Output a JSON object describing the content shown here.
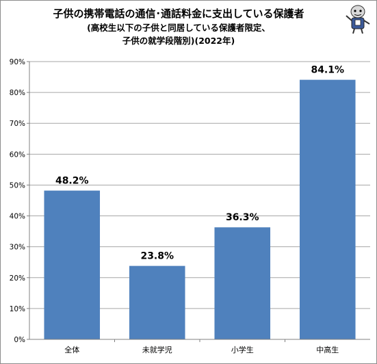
{
  "chart_data": {
    "type": "bar",
    "title": "子供の携帯電話の通信･通話料金に支出している保護者",
    "subtitle_line1": "(高校生以下の子供と同居している保護者限定、",
    "subtitle_line2": "子供の就学段階別)(2022年)",
    "categories": [
      "全体",
      "未就学児",
      "小学生",
      "中高生"
    ],
    "values": [
      48.2,
      23.8,
      36.3,
      84.1
    ],
    "data_labels": [
      "48.2%",
      "23.8%",
      "36.3%",
      "84.1%"
    ],
    "ylim": [
      0,
      90
    ],
    "y_ticks": [
      0,
      10,
      20,
      30,
      40,
      50,
      60,
      70,
      80,
      90
    ],
    "y_tick_labels": [
      "0%",
      "10%",
      "20%",
      "30%",
      "40%",
      "50%",
      "60%",
      "70%",
      "80%",
      "90%"
    ],
    "grid": true,
    "bar_color": "#4f81bd",
    "grid_color": "#a6a6a6"
  },
  "mascot_icon": "mascot-character-icon"
}
